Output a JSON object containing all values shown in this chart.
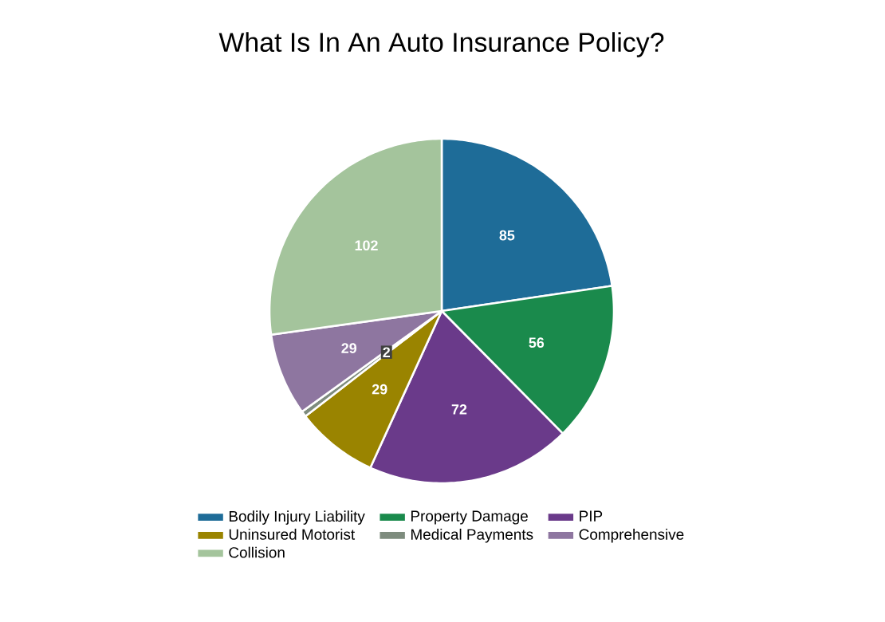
{
  "chart_data": {
    "type": "pie",
    "title": "What Is In An Auto Insurance Policy?",
    "categories": [
      "Bodily Injury Liability",
      "Property Damage",
      "PIP",
      "Uninsured Motorist",
      "Medical Payments",
      "Comprehensive",
      "Collision"
    ],
    "values": [
      85,
      56,
      72,
      29,
      2,
      29,
      102
    ],
    "colors": [
      "#1e6c98",
      "#1a8a4c",
      "#6a3a8a",
      "#9a8400",
      "#7e8c7e",
      "#8e76a0",
      "#a4c49c"
    ],
    "data_labels": true,
    "legend": "bottom"
  }
}
